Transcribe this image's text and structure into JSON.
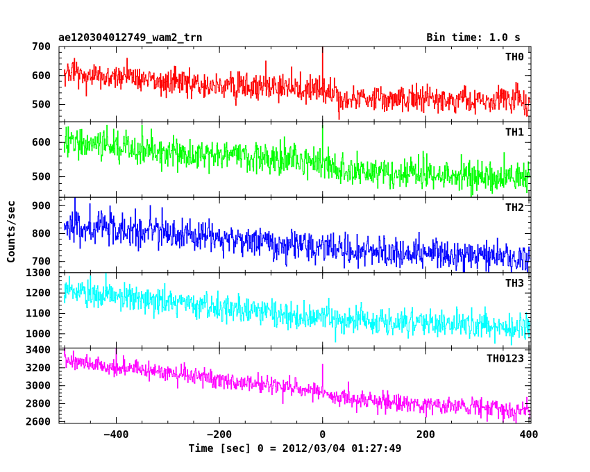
{
  "header": {
    "title": "ae120304012749_wam2_trn",
    "bin_time": "Bin time: 1.0 s"
  },
  "axes": {
    "xlabel": "Time [sec] 0 = 2012/03/04 01:27:49",
    "ylabel": "Counts/sec"
  },
  "chart_data": {
    "type": "line",
    "x_range": [
      -511,
      404
    ],
    "x_ticks": [
      -400,
      -200,
      0,
      200,
      400
    ],
    "x_tick_labels": [
      "−400",
      "−200",
      "0",
      "200",
      "400"
    ],
    "bin_time_s": 1.0,
    "colors": {
      "TH0": "#ff0000",
      "TH1": "#00ff00",
      "TH2": "#0000ff",
      "TH3": "#00ffff",
      "TH0123": "#ff00ff"
    },
    "panels": [
      {
        "name": "TH0",
        "ylim": [
          440,
          700
        ],
        "y_ticks": [
          500,
          600,
          700
        ],
        "y_tick_labels": [
          "500",
          "600",
          "700"
        ],
        "trend": [
          [
            -500,
            610
          ],
          [
            -200,
            565
          ],
          [
            -10,
            545
          ],
          [
            40,
            525
          ],
          [
            400,
            512
          ]
        ],
        "noise_sd": 24,
        "spikes": [
          [
            0,
            700
          ],
          [
            -110,
            650
          ],
          [
            -60,
            630
          ]
        ]
      },
      {
        "name": "TH1",
        "ylim": [
          440,
          660
        ],
        "y_ticks": [
          500,
          600
        ],
        "y_tick_labels": [
          "500",
          "600"
        ],
        "trend": [
          [
            -500,
            605
          ],
          [
            -200,
            560
          ],
          [
            -10,
            545
          ],
          [
            40,
            515
          ],
          [
            400,
            495
          ]
        ],
        "noise_sd": 22,
        "spikes": [
          [
            0,
            650
          ],
          [
            -350,
            650
          ]
        ]
      },
      {
        "name": "TH2",
        "ylim": [
          660,
          930
        ],
        "y_ticks": [
          700,
          800,
          900
        ],
        "y_tick_labels": [
          "700",
          "800",
          "900"
        ],
        "trend": [
          [
            -500,
            830
          ],
          [
            -200,
            785
          ],
          [
            0,
            750
          ],
          [
            400,
            712
          ]
        ],
        "noise_sd": 28,
        "spikes": [
          [
            -480,
            930
          ]
        ]
      },
      {
        "name": "TH3",
        "ylim": [
          930,
          1300
        ],
        "y_ticks": [
          1000,
          1100,
          1200,
          1300
        ],
        "y_tick_labels": [
          "1000",
          "1100",
          "1200",
          "1300"
        ],
        "trend": [
          [
            -500,
            1210
          ],
          [
            -200,
            1130
          ],
          [
            0,
            1075
          ],
          [
            400,
            1030
          ]
        ],
        "noise_sd": 34,
        "spikes": [
          [
            -420,
            1300
          ]
        ]
      },
      {
        "name": "TH0123",
        "ylim": [
          2580,
          3420
        ],
        "y_ticks": [
          2600,
          2800,
          3000,
          3200,
          3400
        ],
        "y_tick_labels": [
          "2600",
          "2800",
          "3000",
          "3200",
          "3400"
        ],
        "trend": [
          [
            -500,
            3280
          ],
          [
            -200,
            3070
          ],
          [
            -10,
            2950
          ],
          [
            40,
            2850
          ],
          [
            400,
            2720
          ]
        ],
        "noise_sd": 50,
        "spikes": [
          [
            0,
            3240
          ],
          [
            -400,
            3420
          ]
        ]
      }
    ]
  }
}
